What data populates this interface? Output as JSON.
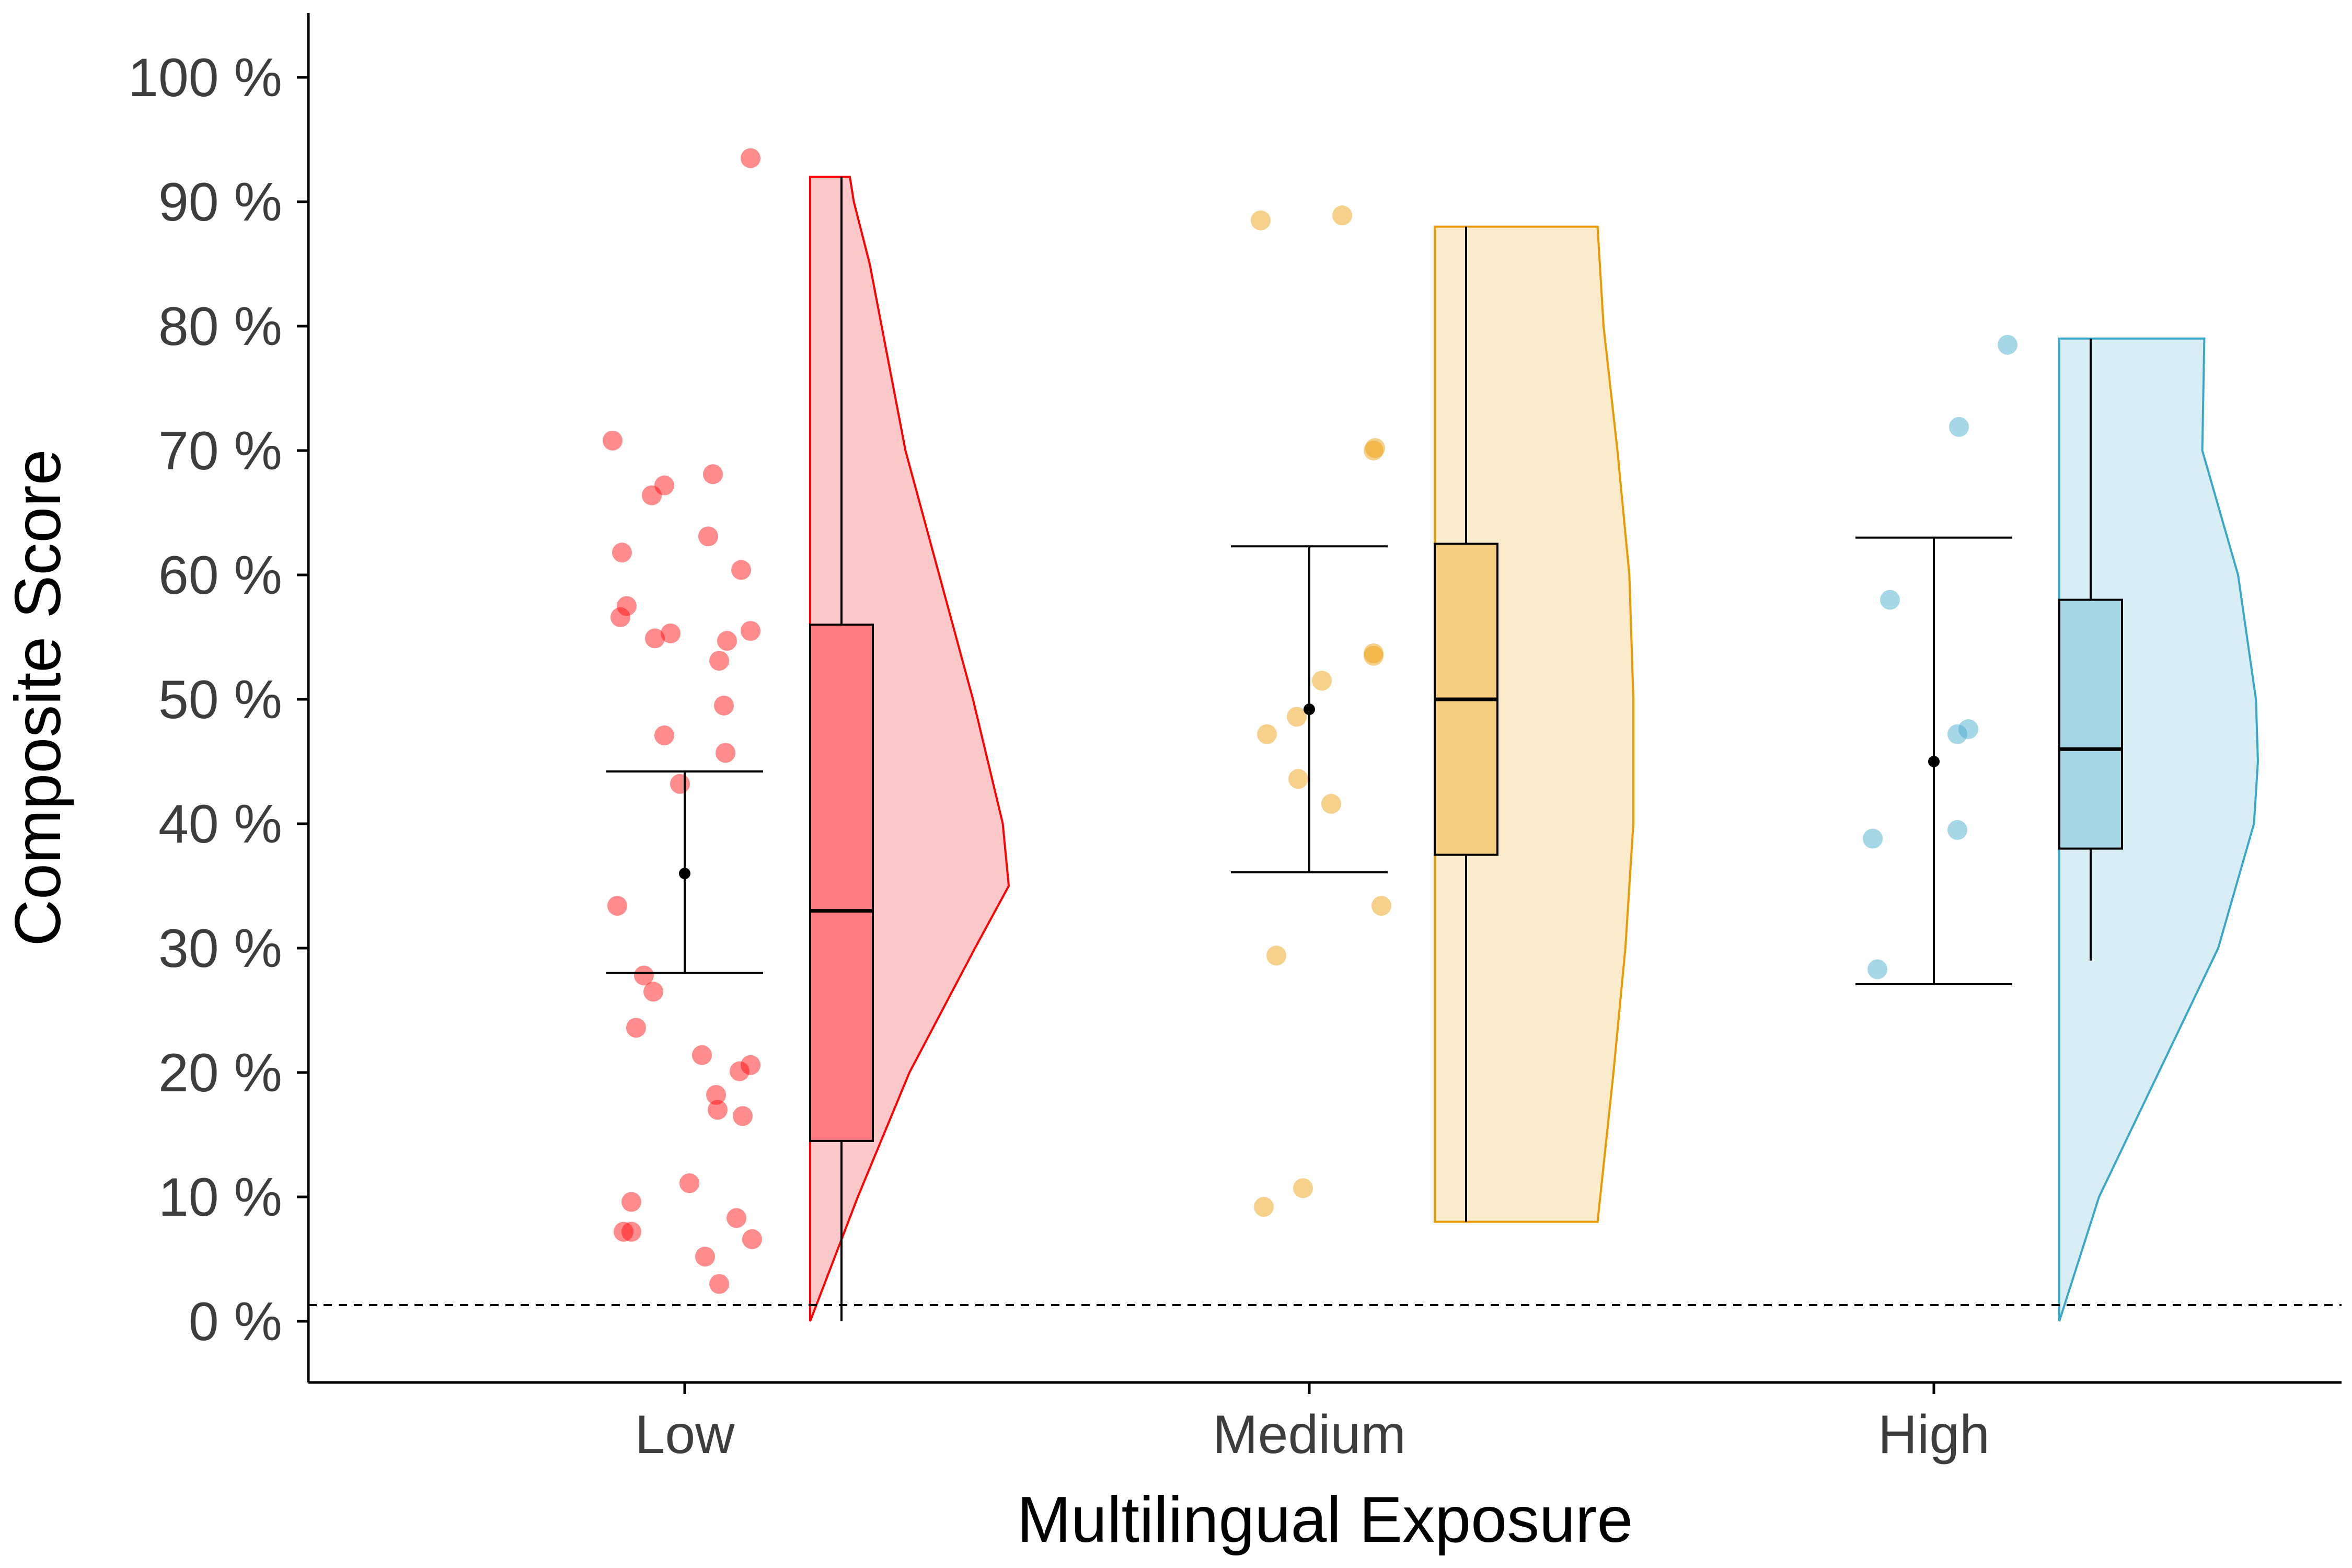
{
  "chart_data": {
    "type": "raincloud",
    "xlabel": "Multilingual Exposure",
    "ylabel": "Composite Score",
    "ylim": [
      -5,
      105
    ],
    "yticks": [
      {
        "value": 0,
        "label": "0 %"
      },
      {
        "value": 10,
        "label": "10 %"
      },
      {
        "value": 20,
        "label": "20 %"
      },
      {
        "value": 30,
        "label": "30 %"
      },
      {
        "value": 40,
        "label": "40 %"
      },
      {
        "value": 50,
        "label": "50 %"
      },
      {
        "value": 60,
        "label": "60 %"
      },
      {
        "value": 70,
        "label": "70 %"
      },
      {
        "value": 80,
        "label": "80 %"
      },
      {
        "value": 90,
        "label": "90 %"
      },
      {
        "value": 100,
        "label": "100 %"
      }
    ],
    "reference_line": {
      "y": 1.3,
      "style": "dashed"
    },
    "grid": false,
    "categories": [
      "Low",
      "Medium",
      "High"
    ],
    "groups": [
      {
        "category": "Low",
        "color": "#ff0000",
        "fill": "#fcc8ca",
        "box_fill": "#ff7b80",
        "mean": 36,
        "ci": [
          28,
          44.2
        ],
        "box": {
          "min": 0,
          "q1": 14.5,
          "median": 33,
          "q3": 56,
          "max": 92
        },
        "density": [
          [
            0,
            0.0
          ],
          [
            10,
            0.24
          ],
          [
            20,
            0.5
          ],
          [
            30,
            0.83
          ],
          [
            35,
            1.0
          ],
          [
            40,
            0.97
          ],
          [
            50,
            0.82
          ],
          [
            60,
            0.65
          ],
          [
            70,
            0.48
          ],
          [
            80,
            0.36
          ],
          [
            85,
            0.3
          ],
          [
            90,
            0.22
          ],
          [
            92,
            0.2
          ]
        ],
        "points": [
          {
            "y": 93.5,
            "j": 0.42
          },
          {
            "y": 70.8,
            "j": -0.46
          },
          {
            "y": 68.1,
            "j": 0.18
          },
          {
            "y": 67.2,
            "j": -0.13
          },
          {
            "y": 66.4,
            "j": -0.21
          },
          {
            "y": 63.1,
            "j": 0.15
          },
          {
            "y": 61.8,
            "j": -0.4
          },
          {
            "y": 60.4,
            "j": 0.36
          },
          {
            "y": 57.5,
            "j": -0.37
          },
          {
            "y": 56.6,
            "j": -0.41
          },
          {
            "y": 55.5,
            "j": 0.42
          },
          {
            "y": 55.3,
            "j": -0.09
          },
          {
            "y": 54.9,
            "j": -0.19
          },
          {
            "y": 54.7,
            "j": 0.27
          },
          {
            "y": 53.1,
            "j": 0.22
          },
          {
            "y": 49.5,
            "j": 0.25
          },
          {
            "y": 47.1,
            "j": -0.13
          },
          {
            "y": 45.7,
            "j": 0.26
          },
          {
            "y": 43.2,
            "j": -0.03
          },
          {
            "y": 33.4,
            "j": -0.43
          },
          {
            "y": 27.8,
            "j": -0.26
          },
          {
            "y": 26.5,
            "j": -0.2
          },
          {
            "y": 23.6,
            "j": -0.31
          },
          {
            "y": 21.4,
            "j": 0.11
          },
          {
            "y": 20.6,
            "j": 0.42
          },
          {
            "y": 20.1,
            "j": 0.35
          },
          {
            "y": 18.2,
            "j": 0.2
          },
          {
            "y": 17.0,
            "j": 0.21
          },
          {
            "y": 16.5,
            "j": 0.37
          },
          {
            "y": 11.1,
            "j": 0.03
          },
          {
            "y": 9.6,
            "j": -0.34
          },
          {
            "y": 8.3,
            "j": 0.33
          },
          {
            "y": 7.2,
            "j": -0.39
          },
          {
            "y": 7.2,
            "j": -0.34
          },
          {
            "y": 6.6,
            "j": 0.43
          },
          {
            "y": 5.2,
            "j": 0.13
          },
          {
            "y": 3.0,
            "j": 0.22
          }
        ]
      },
      {
        "category": "Medium",
        "color": "#ea9a00",
        "fill": "#faebcc",
        "box_fill": "#f5cd7f",
        "mean": 49.2,
        "ci": [
          36.1,
          62.3
        ],
        "box": {
          "min": 8,
          "q1": 37.5,
          "median": 50,
          "q3": 62.5,
          "max": 88
        },
        "density": [
          [
            8,
            0.82
          ],
          [
            20,
            0.9
          ],
          [
            30,
            0.96
          ],
          [
            40,
            1.0
          ],
          [
            50,
            1.0
          ],
          [
            60,
            0.98
          ],
          [
            70,
            0.92
          ],
          [
            80,
            0.85
          ],
          [
            88,
            0.82
          ]
        ],
        "points": [
          {
            "y": 88.9,
            "j": 0.21
          },
          {
            "y": 88.5,
            "j": -0.31
          },
          {
            "y": 70.2,
            "j": 0.42
          },
          {
            "y": 70.0,
            "j": 0.41
          },
          {
            "y": 53.7,
            "j": 0.41
          },
          {
            "y": 53.5,
            "j": 0.41
          },
          {
            "y": 51.5,
            "j": 0.08
          },
          {
            "y": 48.6,
            "j": -0.08
          },
          {
            "y": 47.2,
            "j": -0.27
          },
          {
            "y": 43.6,
            "j": -0.07
          },
          {
            "y": 41.6,
            "j": 0.14
          },
          {
            "y": 33.4,
            "j": 0.46
          },
          {
            "y": 29.4,
            "j": -0.21
          },
          {
            "y": 10.7,
            "j": -0.04
          },
          {
            "y": 9.2,
            "j": -0.29
          }
        ]
      },
      {
        "category": "High",
        "color": "#3aa7c9",
        "fill": "#d9edf4",
        "box_fill": "#a4d6e6",
        "mean": 45,
        "ci": [
          27.1,
          63
        ],
        "box": {
          "min": 29,
          "q1": 38,
          "median": 46,
          "q3": 58,
          "max": 79
        },
        "density": [
          [
            0,
            0.0
          ],
          [
            10,
            0.2
          ],
          [
            20,
            0.5
          ],
          [
            30,
            0.8
          ],
          [
            40,
            0.98
          ],
          [
            45,
            1.0
          ],
          [
            50,
            0.99
          ],
          [
            60,
            0.9
          ],
          [
            70,
            0.72
          ],
          [
            79,
            0.73
          ]
        ],
        "points": [
          {
            "y": 78.5,
            "j": 0.47
          },
          {
            "y": 71.9,
            "j": 0.16
          },
          {
            "y": 58.0,
            "j": -0.28
          },
          {
            "y": 47.6,
            "j": 0.22
          },
          {
            "y": 47.2,
            "j": 0.15
          },
          {
            "y": 39.5,
            "j": 0.15
          },
          {
            "y": 38.8,
            "j": -0.39
          },
          {
            "y": 28.3,
            "j": -0.36
          }
        ]
      }
    ]
  }
}
